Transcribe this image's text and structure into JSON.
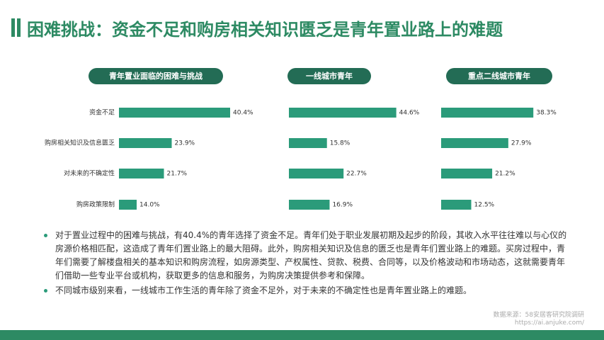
{
  "header": {
    "title": "困难挑战：资金不足和购房相关知识匮乏是青年置业路上的难题"
  },
  "chart_data": [
    {
      "type": "bar",
      "orientation": "horizontal",
      "title": "青年置业面临的困难与挑战",
      "categories": [
        "资金不足",
        "购房相关知识及信息匮乏",
        "对未来的不确定性",
        "购房政策限制"
      ],
      "values": [
        40.4,
        23.9,
        21.7,
        14.0
      ],
      "value_labels": [
        "40.4%",
        "23.9%",
        "21.7%",
        "14.0%"
      ],
      "color": "#2b9b7a",
      "xlim": [
        9,
        43
      ]
    },
    {
      "type": "bar",
      "orientation": "horizontal",
      "title": "一线城市青年",
      "values": [
        44.6,
        15.8,
        22.7,
        16.9
      ],
      "value_labels": [
        "44.6%",
        "15.8%",
        "22.7%",
        "16.9%"
      ],
      "color": "#2b9b7a",
      "xlim": [
        0,
        50
      ]
    },
    {
      "type": "bar",
      "orientation": "horizontal",
      "title": "重点二线城市青年",
      "values": [
        38.3,
        27.9,
        21.2,
        12.5
      ],
      "value_labels": [
        "38.3%",
        "27.9%",
        "21.2%",
        "12.5%"
      ],
      "color": "#2b9b7a",
      "xlim": [
        0,
        50
      ]
    }
  ],
  "bullets": [
    "对于置业过程中的困难与挑战，有40.4%的青年选择了资金不足。青年们处于职业发展初期及起步的阶段，其收入水平往往难以与心仪的房源价格相匹配，这造成了青年们置业路上的最大阻碍。此外，购房相关知识及信息的匮乏也是青年们置业路上的难题。买房过程中，青年们需要了解楼盘相关的基本知识和购房流程，如房源类型、产权属性、贷款、税费、合同等，以及价格波动和市场动态，这就需要青年们借助一些专业平台或机构，获取更多的信息和服务，为购房决策提供参考和保障。",
    "不同城市级别来看，一线城市工作生活的青年除了资金不足外，对于未来的不确定性也是青年置业路上的难题。"
  ],
  "source": {
    "label": "数据来源：58安居客研究院调研",
    "url": "https://ai.anjuke.com/"
  }
}
